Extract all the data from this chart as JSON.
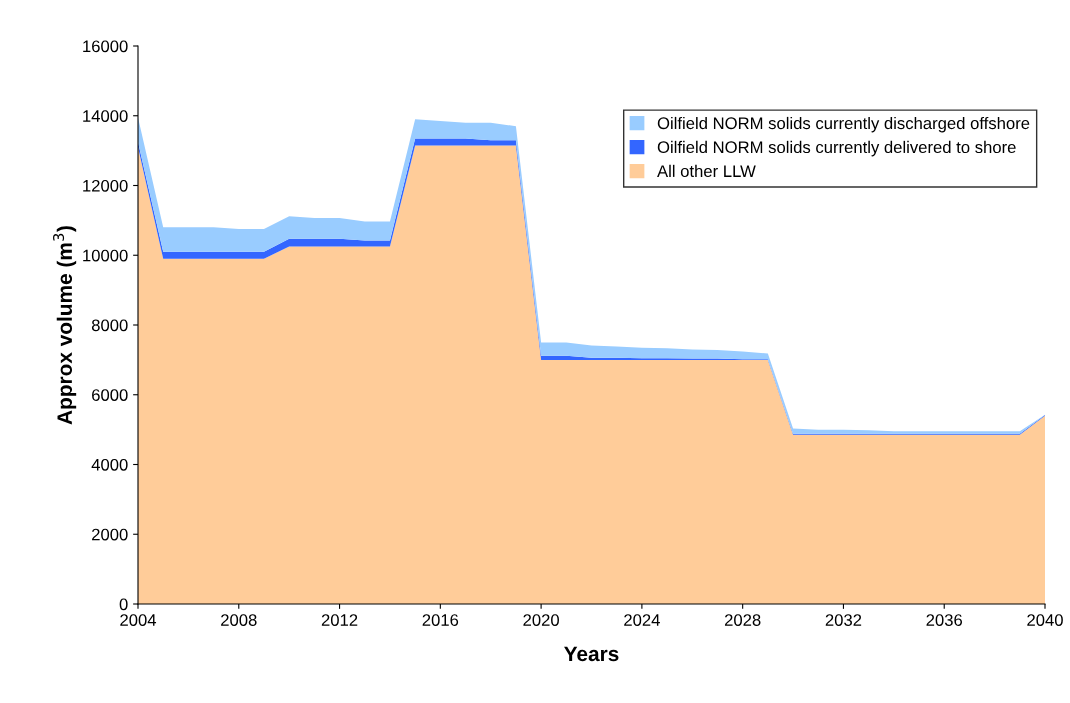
{
  "chart_data": {
    "type": "area",
    "stacked": true,
    "xlabel": "Years",
    "ylabel": "Approx volume (m$^{3}$)",
    "x": [
      2004,
      2005,
      2006,
      2007,
      2008,
      2009,
      2010,
      2011,
      2012,
      2013,
      2014,
      2015,
      2016,
      2017,
      2018,
      2019,
      2020,
      2021,
      2022,
      2023,
      2024,
      2025,
      2026,
      2027,
      2028,
      2029,
      2030,
      2031,
      2032,
      2033,
      2034,
      2035,
      2036,
      2037,
      2038,
      2039,
      2040
    ],
    "series": [
      {
        "name": "All other LLW",
        "color": "#ffcc99",
        "values": [
          13100,
          9900,
          9900,
          9900,
          9900,
          9900,
          10250,
          10250,
          10250,
          10250,
          10250,
          13150,
          13150,
          13150,
          13150,
          13150,
          7000,
          7000,
          7000,
          7000,
          7000,
          7000,
          7000,
          7000,
          7000,
          7000,
          4850,
          4850,
          4850,
          4850,
          4850,
          4850,
          4850,
          4850,
          4850,
          4850,
          5400
        ]
      },
      {
        "name": "Oilfield NORM solids currently delivered to shore",
        "color": "#3366ff",
        "values": [
          150,
          200,
          200,
          200,
          200,
          200,
          220,
          220,
          220,
          170,
          170,
          200,
          200,
          200,
          150,
          150,
          120,
          120,
          60,
          60,
          50,
          50,
          40,
          40,
          20,
          20,
          30,
          30,
          30,
          30,
          30,
          30,
          30,
          30,
          30,
          30,
          20
        ]
      },
      {
        "name": "Oilfield NORM solids currently discharged offshore",
        "color": "#99ccff",
        "values": [
          700,
          700,
          700,
          700,
          650,
          650,
          650,
          600,
          600,
          550,
          550,
          550,
          500,
          450,
          500,
          400,
          380,
          380,
          350,
          320,
          300,
          280,
          260,
          240,
          220,
          160,
          150,
          120,
          120,
          100,
          70,
          70,
          70,
          70,
          70,
          70,
          10
        ]
      }
    ],
    "xlim": [
      2004,
      2040
    ],
    "xticks": [
      2004,
      2008,
      2012,
      2016,
      2020,
      2024,
      2028,
      2032,
      2036,
      2040
    ],
    "ylim": [
      0,
      16000
    ],
    "yticks": [
      0,
      2000,
      4000,
      6000,
      8000,
      10000,
      12000,
      14000,
      16000
    ],
    "legend": "top right"
  }
}
